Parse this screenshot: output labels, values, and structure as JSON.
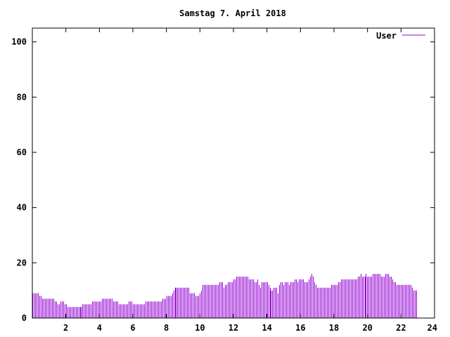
{
  "chart_data": {
    "type": "bar",
    "title": "Samstag 7. April 2018",
    "xlabel": "",
    "ylabel": "",
    "xlim": [
      0,
      24
    ],
    "ylim": [
      0,
      105
    ],
    "x_ticks": [
      2,
      4,
      6,
      8,
      10,
      12,
      14,
      16,
      18,
      20,
      22,
      24
    ],
    "y_ticks": [
      0,
      20,
      40,
      60,
      80,
      100
    ],
    "grid": false,
    "legend_position": "top-right",
    "colors": {
      "series": "#9400d3",
      "axes": "#000000",
      "background": "#ffffff"
    },
    "sample_interval_hours": 0.0833,
    "series": [
      {
        "name": "User",
        "values": [
          9,
          9,
          9,
          9,
          9,
          8,
          8,
          7,
          7,
          7,
          7,
          7,
          7,
          7,
          7,
          7,
          6,
          6,
          5,
          5,
          6,
          6,
          6,
          5,
          5,
          4,
          4,
          4,
          4,
          4,
          4,
          4,
          4,
          4,
          4,
          4,
          5,
          5,
          5,
          5,
          5,
          5,
          5,
          6,
          6,
          6,
          6,
          6,
          6,
          6,
          7,
          7,
          7,
          7,
          7,
          7,
          7,
          7,
          6,
          6,
          6,
          6,
          5,
          5,
          5,
          5,
          5,
          5,
          5,
          6,
          6,
          6,
          5,
          5,
          5,
          5,
          5,
          5,
          5,
          5,
          5,
          6,
          6,
          6,
          6,
          6,
          6,
          6,
          6,
          6,
          6,
          6,
          6,
          7,
          7,
          7,
          8,
          8,
          8,
          8,
          9,
          10,
          11,
          11,
          11,
          11,
          11,
          11,
          11,
          11,
          11,
          11,
          11,
          9,
          9,
          9,
          9,
          8,
          8,
          8,
          9,
          10,
          12,
          12,
          12,
          12,
          12,
          12,
          12,
          12,
          12,
          12,
          12,
          12,
          13,
          13,
          13,
          11,
          12,
          12,
          13,
          13,
          13,
          13,
          14,
          14,
          15,
          15,
          15,
          15,
          15,
          15,
          15,
          15,
          15,
          14,
          14,
          14,
          14,
          13,
          13,
          14,
          12,
          11,
          13,
          13,
          13,
          13,
          13,
          12,
          11,
          10,
          10,
          11,
          11,
          11,
          9,
          12,
          13,
          13,
          12,
          13,
          13,
          13,
          12,
          13,
          13,
          13,
          14,
          14,
          13,
          14,
          14,
          14,
          14,
          13,
          13,
          13,
          14,
          15,
          16,
          15,
          13,
          12,
          11,
          11,
          11,
          11,
          11,
          11,
          11,
          11,
          11,
          11,
          12,
          12,
          12,
          12,
          12,
          13,
          13,
          14,
          14,
          14,
          14,
          14,
          14,
          14,
          14,
          14,
          14,
          14,
          14,
          15,
          15,
          16,
          15,
          15,
          15,
          16,
          15,
          15,
          15,
          15,
          16,
          16,
          16,
          16,
          16,
          16,
          15,
          15,
          15,
          16,
          16,
          16,
          15,
          15,
          14,
          13,
          13,
          12,
          12,
          12,
          12,
          12,
          12,
          12,
          12,
          12,
          12,
          12,
          11,
          10,
          10,
          10
        ]
      }
    ]
  }
}
